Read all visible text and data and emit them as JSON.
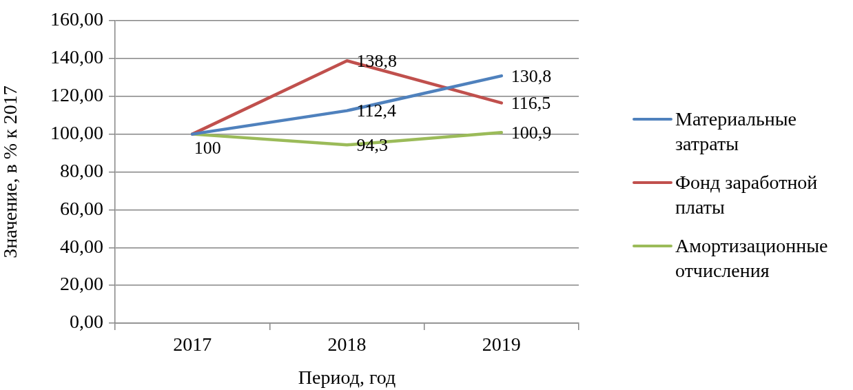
{
  "chart_data": {
    "type": "line",
    "xlabel": "Период, год",
    "ylabel": "Значение, в % к 2017",
    "categories": [
      "2017",
      "2018",
      "2019"
    ],
    "series": [
      {
        "name": "Материальные затраты",
        "color": "#4f81bd",
        "values": [
          100,
          112.4,
          130.8
        ],
        "value_labels": [
          null,
          "112,4",
          "130,8"
        ]
      },
      {
        "name": "Фонд заработной платы",
        "color": "#c0504d",
        "values": [
          100,
          138.8,
          116.5
        ],
        "value_labels": [
          null,
          "138,8",
          "116,5"
        ]
      },
      {
        "name": "Амортизационные отчисления",
        "color": "#9bbb59",
        "values": [
          100,
          94.3,
          100.9
        ],
        "value_labels": [
          "100",
          "94,3",
          "100,9"
        ]
      }
    ],
    "ylim": [
      0,
      160
    ],
    "yticks": [
      {
        "value": 0,
        "label": "0,00"
      },
      {
        "value": 20,
        "label": "20,00"
      },
      {
        "value": 40,
        "label": "40,00"
      },
      {
        "value": 60,
        "label": "60,00"
      },
      {
        "value": 80,
        "label": "80,00"
      },
      {
        "value": 100,
        "label": "100,00"
      },
      {
        "value": 120,
        "label": "120,00"
      },
      {
        "value": 140,
        "label": "140,00"
      },
      {
        "value": 160,
        "label": "160,00"
      }
    ],
    "grid": "y",
    "legend": "right",
    "marker": "none",
    "line_style": "solid"
  }
}
